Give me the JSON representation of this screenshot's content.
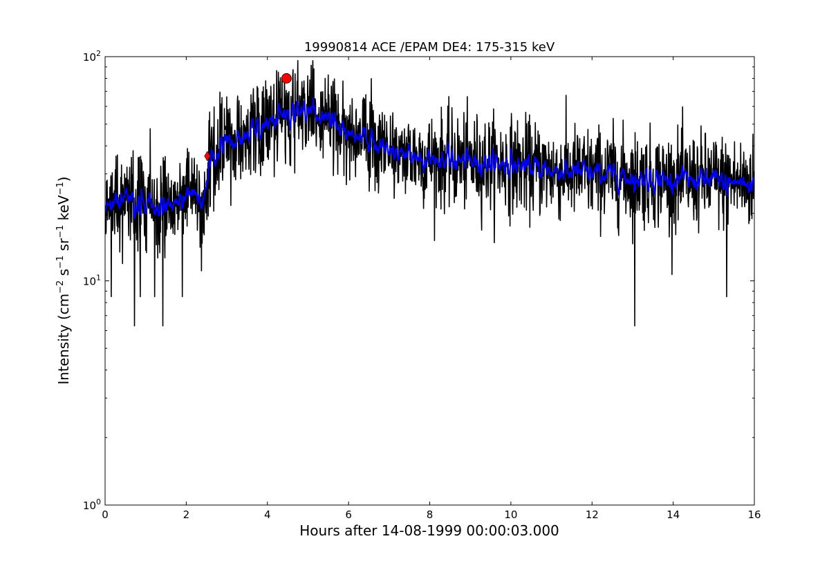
{
  "chart_data": {
    "type": "line",
    "title": "19990814 ACE /EPAM DE4: 175-315 keV",
    "xlabel": "Hours after 14-08-1999 00:00:03.000",
    "ylabel": "Intensity (cm^-2 s^-1 sr^-1 keV^-1)",
    "ylabel_parts": {
      "lead": "Intensity (cm",
      "e1": "−2",
      "s": " s",
      "e2": "−1",
      "sr": " sr",
      "e3": "−1",
      "kev": " keV",
      "e4": "−1",
      "close": ")"
    },
    "xlim": [
      0,
      16
    ],
    "ylim": [
      1,
      100
    ],
    "yscale": "log",
    "grid": false,
    "xticks": [
      0,
      2,
      4,
      6,
      8,
      10,
      12,
      14,
      16
    ],
    "xtick_labels": [
      "0",
      "2",
      "4",
      "6",
      "8",
      "10",
      "12",
      "14",
      "16"
    ],
    "yticks": [
      {
        "base": "10",
        "exp": "0"
      },
      {
        "base": "10",
        "exp": "1"
      },
      {
        "base": "10",
        "exp": "2"
      }
    ],
    "series": [
      {
        "color": "#000000",
        "envelope": [
          {
            "x": 0.0,
            "y": 22
          },
          {
            "x": 0.5,
            "y": 24
          },
          {
            "x": 1.0,
            "y": 22
          },
          {
            "x": 1.5,
            "y": 22
          },
          {
            "x": 2.0,
            "y": 23
          },
          {
            "x": 2.4,
            "y": 24
          },
          {
            "x": 2.6,
            "y": 35
          },
          {
            "x": 3.0,
            "y": 40
          },
          {
            "x": 3.5,
            "y": 45
          },
          {
            "x": 4.0,
            "y": 50
          },
          {
            "x": 4.5,
            "y": 55
          },
          {
            "x": 5.0,
            "y": 57
          },
          {
            "x": 5.5,
            "y": 52
          },
          {
            "x": 6.0,
            "y": 46
          },
          {
            "x": 6.5,
            "y": 42
          },
          {
            "x": 7.0,
            "y": 38
          },
          {
            "x": 8.0,
            "y": 35
          },
          {
            "x": 9.0,
            "y": 34
          },
          {
            "x": 10.0,
            "y": 33
          },
          {
            "x": 11.0,
            "y": 31
          },
          {
            "x": 12.0,
            "y": 30
          },
          {
            "x": 13.0,
            "y": 29
          },
          {
            "x": 14.0,
            "y": 28
          },
          {
            "x": 15.0,
            "y": 28
          },
          {
            "x": 16.0,
            "y": 27
          }
        ],
        "spikes": [
          {
            "x": 0.72,
            "y": 6.3
          },
          {
            "x": 1.42,
            "y": 6.3
          },
          {
            "x": 13.05,
            "y": 6.3
          },
          {
            "x": 0.15,
            "y": 8.5
          },
          {
            "x": 0.87,
            "y": 8.5
          },
          {
            "x": 1.22,
            "y": 8.5
          },
          {
            "x": 1.9,
            "y": 8.5
          },
          {
            "x": 15.32,
            "y": 8.5
          },
          {
            "x": 5.12,
            "y": 96
          },
          {
            "x": 4.9,
            "y": 78
          },
          {
            "x": 5.42,
            "y": 80
          },
          {
            "x": 4.28,
            "y": 72
          }
        ]
      },
      {
        "color": "#0000ff",
        "envelope": [
          {
            "x": 0.0,
            "y": 22
          },
          {
            "x": 0.5,
            "y": 24
          },
          {
            "x": 1.0,
            "y": 22
          },
          {
            "x": 1.5,
            "y": 22
          },
          {
            "x": 2.0,
            "y": 23
          },
          {
            "x": 2.4,
            "y": 24
          },
          {
            "x": 2.6,
            "y": 35
          },
          {
            "x": 3.0,
            "y": 40
          },
          {
            "x": 3.5,
            "y": 45
          },
          {
            "x": 4.0,
            "y": 50
          },
          {
            "x": 4.5,
            "y": 55
          },
          {
            "x": 5.0,
            "y": 57
          },
          {
            "x": 5.5,
            "y": 52
          },
          {
            "x": 6.0,
            "y": 46
          },
          {
            "x": 6.5,
            "y": 42
          },
          {
            "x": 7.0,
            "y": 38
          },
          {
            "x": 8.0,
            "y": 35
          },
          {
            "x": 9.0,
            "y": 34
          },
          {
            "x": 10.0,
            "y": 33
          },
          {
            "x": 11.0,
            "y": 31
          },
          {
            "x": 12.0,
            "y": 30
          },
          {
            "x": 13.0,
            "y": 29
          },
          {
            "x": 14.0,
            "y": 28
          },
          {
            "x": 15.0,
            "y": 28
          },
          {
            "x": 16.0,
            "y": 27
          }
        ]
      }
    ],
    "markers": [
      {
        "shape": "diamond",
        "x": 2.52,
        "y": 36,
        "color": "#ff0000"
      },
      {
        "shape": "circle",
        "x": 4.47,
        "y": 80,
        "color": "#ff0000"
      }
    ]
  }
}
